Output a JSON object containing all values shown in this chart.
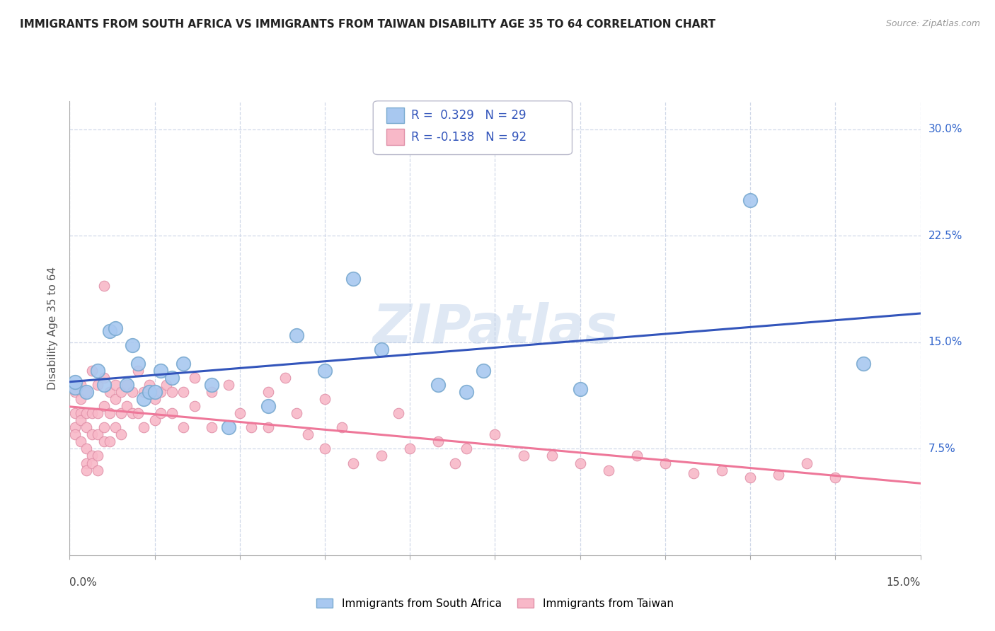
{
  "title": "IMMIGRANTS FROM SOUTH AFRICA VS IMMIGRANTS FROM TAIWAN DISABILITY AGE 35 TO 64 CORRELATION CHART",
  "source": "Source: ZipAtlas.com",
  "ylabel": "Disability Age 35 to 64",
  "legend_blue_label": "Immigrants from South Africa",
  "legend_pink_label": "Immigrants from Taiwan",
  "blue_R": 0.329,
  "blue_N": 29,
  "pink_R": -0.138,
  "pink_N": 92,
  "xmin": 0.0,
  "xmax": 0.15,
  "ymin": 0.0,
  "ymax": 0.32,
  "yticks": [
    0.0,
    0.075,
    0.15,
    0.225,
    0.3
  ],
  "ytick_labels": [
    "",
    "7.5%",
    "15.0%",
    "22.5%",
    "30.0%"
  ],
  "blue_dots": [
    [
      0.001,
      0.118
    ],
    [
      0.001,
      0.122
    ],
    [
      0.003,
      0.115
    ],
    [
      0.005,
      0.13
    ],
    [
      0.006,
      0.12
    ],
    [
      0.007,
      0.158
    ],
    [
      0.008,
      0.16
    ],
    [
      0.01,
      0.12
    ],
    [
      0.011,
      0.148
    ],
    [
      0.012,
      0.135
    ],
    [
      0.013,
      0.11
    ],
    [
      0.014,
      0.115
    ],
    [
      0.015,
      0.115
    ],
    [
      0.016,
      0.13
    ],
    [
      0.018,
      0.125
    ],
    [
      0.02,
      0.135
    ],
    [
      0.025,
      0.12
    ],
    [
      0.028,
      0.09
    ],
    [
      0.035,
      0.105
    ],
    [
      0.04,
      0.155
    ],
    [
      0.045,
      0.13
    ],
    [
      0.05,
      0.195
    ],
    [
      0.055,
      0.145
    ],
    [
      0.065,
      0.12
    ],
    [
      0.07,
      0.115
    ],
    [
      0.073,
      0.13
    ],
    [
      0.09,
      0.117
    ],
    [
      0.12,
      0.25
    ],
    [
      0.14,
      0.135
    ]
  ],
  "pink_dots": [
    [
      0.001,
      0.115
    ],
    [
      0.001,
      0.1
    ],
    [
      0.001,
      0.09
    ],
    [
      0.001,
      0.085
    ],
    [
      0.002,
      0.12
    ],
    [
      0.002,
      0.11
    ],
    [
      0.002,
      0.1
    ],
    [
      0.002,
      0.095
    ],
    [
      0.002,
      0.08
    ],
    [
      0.003,
      0.115
    ],
    [
      0.003,
      0.1
    ],
    [
      0.003,
      0.09
    ],
    [
      0.003,
      0.075
    ],
    [
      0.003,
      0.065
    ],
    [
      0.003,
      0.06
    ],
    [
      0.004,
      0.13
    ],
    [
      0.004,
      0.1
    ],
    [
      0.004,
      0.085
    ],
    [
      0.004,
      0.07
    ],
    [
      0.004,
      0.065
    ],
    [
      0.005,
      0.12
    ],
    [
      0.005,
      0.1
    ],
    [
      0.005,
      0.085
    ],
    [
      0.005,
      0.07
    ],
    [
      0.005,
      0.06
    ],
    [
      0.006,
      0.19
    ],
    [
      0.006,
      0.125
    ],
    [
      0.006,
      0.105
    ],
    [
      0.006,
      0.09
    ],
    [
      0.006,
      0.08
    ],
    [
      0.007,
      0.115
    ],
    [
      0.007,
      0.1
    ],
    [
      0.007,
      0.08
    ],
    [
      0.008,
      0.12
    ],
    [
      0.008,
      0.11
    ],
    [
      0.008,
      0.09
    ],
    [
      0.009,
      0.115
    ],
    [
      0.009,
      0.1
    ],
    [
      0.009,
      0.085
    ],
    [
      0.01,
      0.12
    ],
    [
      0.01,
      0.105
    ],
    [
      0.011,
      0.115
    ],
    [
      0.011,
      0.1
    ],
    [
      0.012,
      0.13
    ],
    [
      0.012,
      0.1
    ],
    [
      0.013,
      0.115
    ],
    [
      0.013,
      0.09
    ],
    [
      0.014,
      0.12
    ],
    [
      0.015,
      0.11
    ],
    [
      0.015,
      0.095
    ],
    [
      0.016,
      0.115
    ],
    [
      0.016,
      0.1
    ],
    [
      0.017,
      0.12
    ],
    [
      0.018,
      0.115
    ],
    [
      0.018,
      0.1
    ],
    [
      0.02,
      0.115
    ],
    [
      0.02,
      0.09
    ],
    [
      0.022,
      0.125
    ],
    [
      0.022,
      0.105
    ],
    [
      0.025,
      0.115
    ],
    [
      0.025,
      0.09
    ],
    [
      0.028,
      0.12
    ],
    [
      0.03,
      0.1
    ],
    [
      0.032,
      0.09
    ],
    [
      0.035,
      0.115
    ],
    [
      0.035,
      0.09
    ],
    [
      0.038,
      0.125
    ],
    [
      0.04,
      0.1
    ],
    [
      0.042,
      0.085
    ],
    [
      0.045,
      0.11
    ],
    [
      0.045,
      0.075
    ],
    [
      0.048,
      0.09
    ],
    [
      0.05,
      0.065
    ],
    [
      0.055,
      0.07
    ],
    [
      0.058,
      0.1
    ],
    [
      0.06,
      0.075
    ],
    [
      0.065,
      0.08
    ],
    [
      0.068,
      0.065
    ],
    [
      0.07,
      0.075
    ],
    [
      0.075,
      0.085
    ],
    [
      0.08,
      0.07
    ],
    [
      0.085,
      0.07
    ],
    [
      0.09,
      0.065
    ],
    [
      0.095,
      0.06
    ],
    [
      0.1,
      0.07
    ],
    [
      0.105,
      0.065
    ],
    [
      0.11,
      0.058
    ],
    [
      0.115,
      0.06
    ],
    [
      0.12,
      0.055
    ],
    [
      0.125,
      0.057
    ],
    [
      0.13,
      0.065
    ],
    [
      0.135,
      0.055
    ]
  ],
  "blue_dot_color": "#a8c8f0",
  "blue_dot_edge": "#7aaad0",
  "pink_dot_color": "#f8b8c8",
  "pink_dot_edge": "#e090a8",
  "blue_line_color": "#3355bb",
  "pink_line_color": "#ee7799",
  "watermark": "ZIPatlas",
  "background_color": "#ffffff",
  "grid_color": "#d0d8e8"
}
